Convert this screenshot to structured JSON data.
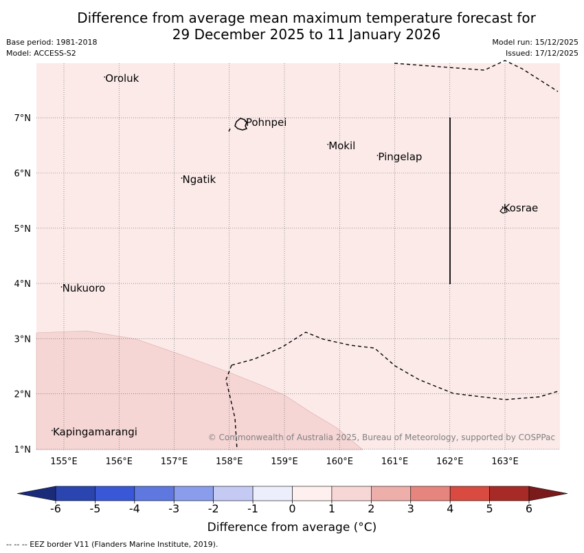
{
  "title": {
    "line1": "Difference from average mean maximum temperature forecast for",
    "line2": "29 December 2025 to 11 January 2026"
  },
  "meta_left": {
    "base_period": "Base period: 1981-2018",
    "model": "Model: ACCESS-S2"
  },
  "meta_right": {
    "model_run": "Model run: 15/12/2025",
    "issued": "Issued: 17/12/2025"
  },
  "map": {
    "lon_range": [
      154.5,
      164
    ],
    "lat_range": [
      1,
      8
    ],
    "lon_ticks": [
      {
        "value": 155,
        "label": "155°E"
      },
      {
        "value": 156,
        "label": "156°E"
      },
      {
        "value": 157,
        "label": "157°E"
      },
      {
        "value": 158,
        "label": "158°E"
      },
      {
        "value": 159,
        "label": "159°E"
      },
      {
        "value": 160,
        "label": "160°E"
      },
      {
        "value": 161,
        "label": "161°E"
      },
      {
        "value": 162,
        "label": "162°E"
      },
      {
        "value": 163,
        "label": "163°E"
      }
    ],
    "lat_ticks": [
      {
        "value": 1,
        "label": "1°N"
      },
      {
        "value": 2,
        "label": "2°N"
      },
      {
        "value": 3,
        "label": "3°N"
      },
      {
        "value": 4,
        "label": "4°N"
      },
      {
        "value": 5,
        "label": "5°N"
      },
      {
        "value": 6,
        "label": "6°N"
      },
      {
        "value": 7,
        "label": "7°N"
      }
    ],
    "places": [
      {
        "name": "Oroluk",
        "lon": 155.75,
        "lat": 7.65
      },
      {
        "name": "Pohnpei",
        "lon": 158.3,
        "lat": 6.85
      },
      {
        "name": "Mokil",
        "lon": 159.8,
        "lat": 6.43
      },
      {
        "name": "Pingelap",
        "lon": 160.7,
        "lat": 6.23
      },
      {
        "name": "Ngatik",
        "lon": 157.15,
        "lat": 5.82
      },
      {
        "name": "Kosrae",
        "lon": 162.97,
        "lat": 5.3
      },
      {
        "name": "Nukuoro",
        "lon": 154.97,
        "lat": 3.85
      },
      {
        "name": "Kapingamarangi",
        "lon": 154.8,
        "lat": 1.25
      }
    ],
    "background_anomaly_range": [
      0,
      1
    ],
    "anomaly_zone_range": [
      1,
      2
    ],
    "copyright": "© Commonwealth of Australia 2025, Bureau of Meteorology, supported by COSPPac"
  },
  "colorbar": {
    "title": "Difference from average (°C)",
    "ticks": [
      "-6",
      "-5",
      "-4",
      "-3",
      "-2",
      "-1",
      "0",
      "1",
      "2",
      "3",
      "4",
      "5",
      "6"
    ],
    "below_color": "#1a2b7a",
    "above_color": "#7a1a1a",
    "colors": [
      "#2b45b0",
      "#3858d8",
      "#5e78e0",
      "#8a9cec",
      "#c4caf4",
      "#eceefc",
      "#fdf0ee",
      "#f7d7d5",
      "#eeaeaa",
      "#e6857e",
      "#d94a40",
      "#a82a26"
    ]
  },
  "footnote": "--  --  -- EEZ border V11 (Flanders Marine Institute, 2019)."
}
